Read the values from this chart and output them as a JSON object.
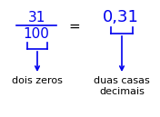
{
  "bg_color": "#ffffff",
  "blue": "#0000ee",
  "black": "#000000",
  "fraction_num": "31",
  "fraction_den": "100",
  "equals": "=",
  "decimal": "0,31",
  "label_left": "dois zeros",
  "label_right": "duas casas\ndecimais",
  "fig_width": 1.76,
  "fig_height": 1.29,
  "dpi": 100
}
